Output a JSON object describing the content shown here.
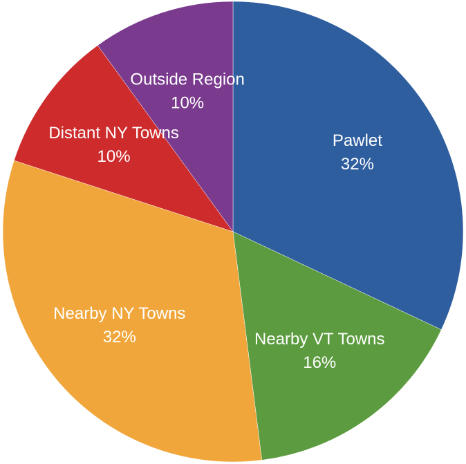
{
  "chart_data": {
    "type": "pie",
    "categories": [
      "Pawlet",
      "Nearby VT Towns",
      "Nearby NY Towns",
      "Distant NY Towns",
      "Outside Region"
    ],
    "values": [
      32,
      16,
      32,
      10,
      10
    ],
    "value_labels": [
      "32%",
      "16%",
      "32%",
      "10%",
      "10%"
    ],
    "colors": [
      "#2f5e9f",
      "#5c9b3f",
      "#f0a63b",
      "#cd2b2c",
      "#7a3b8f"
    ]
  }
}
